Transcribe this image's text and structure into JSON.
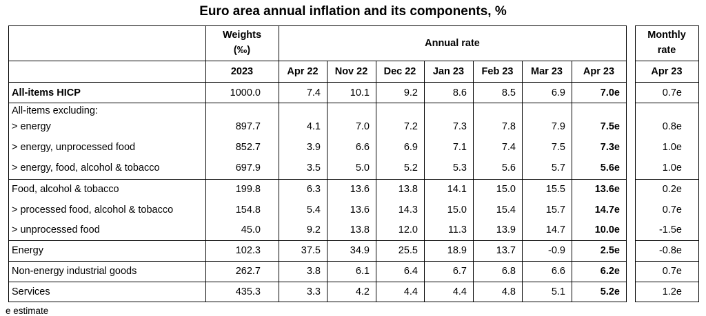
{
  "title": "Euro area annual inflation and its components, %",
  "header": {
    "weights_label_line1": "Weights",
    "weights_label_line2": "(‰)",
    "annual_rate_label": "Annual rate",
    "monthly_rate_line1": "Monthly",
    "monthly_rate_line2": "rate",
    "weights_year": "2023",
    "months": [
      "Apr 22",
      "Nov 22",
      "Dec 22",
      "Jan 23",
      "Feb 23",
      "Mar 23",
      "Apr 23"
    ],
    "monthly_month": "Apr 23"
  },
  "excluding_label": "All-items excluding:",
  "rows": [
    {
      "label": "All-items HICP",
      "weight": "1000.0",
      "values": [
        "7.4",
        "10.1",
        "9.2",
        "8.6",
        "8.5",
        "6.9",
        "7.0e"
      ],
      "monthly": "0.7e",
      "bold_label": true
    },
    {
      "label": "> energy",
      "weight": "897.7",
      "values": [
        "4.1",
        "7.0",
        "7.2",
        "7.3",
        "7.8",
        "7.9",
        "7.5e"
      ],
      "monthly": "0.8e"
    },
    {
      "label": "> energy, unprocessed food",
      "weight": "852.7",
      "values": [
        "3.9",
        "6.6",
        "6.9",
        "7.1",
        "7.4",
        "7.5",
        "7.3e"
      ],
      "monthly": "1.0e"
    },
    {
      "label": "> energy, food, alcohol & tobacco",
      "weight": "697.9",
      "values": [
        "3.5",
        "5.0",
        "5.2",
        "5.3",
        "5.6",
        "5.7",
        "5.6e"
      ],
      "monthly": "1.0e"
    },
    {
      "label": "Food, alcohol & tobacco",
      "weight": "199.8",
      "values": [
        "6.3",
        "13.6",
        "13.8",
        "14.1",
        "15.0",
        "15.5",
        "13.6e"
      ],
      "monthly": "0.2e"
    },
    {
      "label": "> processed food, alcohol & tobacco",
      "weight": "154.8",
      "values": [
        "5.4",
        "13.6",
        "14.3",
        "15.0",
        "15.4",
        "15.7",
        "14.7e"
      ],
      "monthly": "0.7e"
    },
    {
      "label": "> unprocessed food",
      "weight": "45.0",
      "values": [
        "9.2",
        "13.8",
        "12.0",
        "11.3",
        "13.9",
        "14.7",
        "10.0e"
      ],
      "monthly": "-1.5e"
    },
    {
      "label": "Energy",
      "weight": "102.3",
      "values": [
        "37.5",
        "34.9",
        "25.5",
        "18.9",
        "13.7",
        "-0.9",
        "2.5e"
      ],
      "monthly": "-0.8e"
    },
    {
      "label": "Non-energy industrial goods",
      "weight": "262.7",
      "values": [
        "3.8",
        "6.1",
        "6.4",
        "6.7",
        "6.8",
        "6.6",
        "6.2e"
      ],
      "monthly": "0.7e"
    },
    {
      "label": "Services",
      "weight": "435.3",
      "values": [
        "3.3",
        "4.2",
        "4.4",
        "4.4",
        "4.8",
        "5.1",
        "5.2e"
      ],
      "monthly": "1.2e"
    }
  ],
  "footnote": "e estimate"
}
